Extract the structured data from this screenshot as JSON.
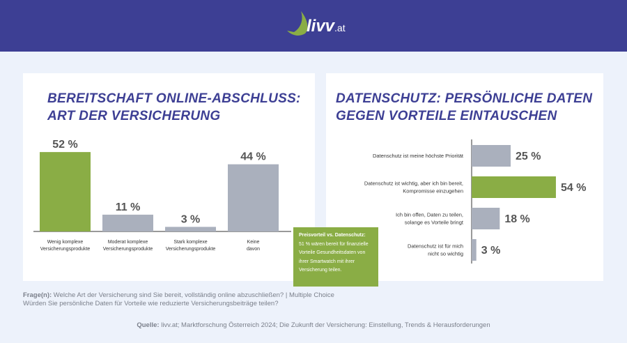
{
  "header": {
    "logo_text": "livv",
    "logo_suffix": ".at",
    "bg": "#3d3f94"
  },
  "colors": {
    "highlight": "#8aad45",
    "neutral": "#aab0bd",
    "title": "#3d3f94"
  },
  "chart_data": [
    {
      "type": "bar",
      "title": "BEREITSCHAFT ONLINE-ABSCHLUSS: ART DER VERSICHERUNG",
      "title_lines": [
        "BEREITSCHAFT ONLINE-ABSCHLUSS:",
        "ART DER VERSICHERUNG"
      ],
      "categories": [
        [
          "Wenig komplexe",
          "Versicherungsprodukte"
        ],
        [
          "Moderat komplexe",
          "Versicherungsprodukte"
        ],
        [
          "Stark komplexe",
          "Versicherungsprodukte"
        ],
        [
          "Keine",
          "davon"
        ]
      ],
      "values": [
        52,
        11,
        3,
        44
      ],
      "labels": [
        "52 %",
        "11 %",
        "3 %",
        "44 %"
      ],
      "highlight": [
        true,
        false,
        false,
        false
      ],
      "ylim": [
        0,
        60
      ]
    },
    {
      "type": "bar",
      "orientation": "horizontal",
      "title": "DATENSCHUTZ: PERSÖNLICHE DATEN GEGEN VORTEILE EINTAUSCHEN",
      "title_lines": [
        "DATENSCHUTZ: PERSÖNLICHE DATEN",
        "GEGEN VORTEILE EINTAUSCHEN"
      ],
      "categories": [
        [
          "Datenschutz ist meine höchste Priorität"
        ],
        [
          "Datenschutz ist wichtig, aber ich bin bereit,",
          "Kompromisse einzugehen"
        ],
        [
          "Ich bin offen, Daten zu teilen,",
          "solange es Vorteile bringt"
        ],
        [
          "Datenschutz ist für mich",
          "nicht so wichtig"
        ]
      ],
      "values": [
        25,
        54,
        18,
        3
      ],
      "labels": [
        "25 %",
        "54 %",
        "18 %",
        "3 %"
      ],
      "highlight": [
        false,
        true,
        false,
        false
      ],
      "xlim": [
        0,
        60
      ]
    }
  ],
  "note": {
    "title": "Preisvorteil vs. Datenschutz:",
    "body": "51 % wären bereit für finanzielle Vorteile Gesundheitsdaten von ihrer Smartwatch mit ihrer Versicherung teilen."
  },
  "footer": {
    "question_label": "Frage(n):",
    "question1": " Welche Art der Versicherung sind Sie bereit, vollständig online abzuschließen? | Multiple Choice",
    "question2": "Würden Sie persönliche Daten für Vorteile wie reduzierte Versicherungsbeiträge teilen?",
    "source_label": "Quelle:",
    "source": " livv.at; Marktforschung Österreich 2024; Die Zukunft der Versicherung: Einstellung, Trends & Herausforderungen"
  }
}
